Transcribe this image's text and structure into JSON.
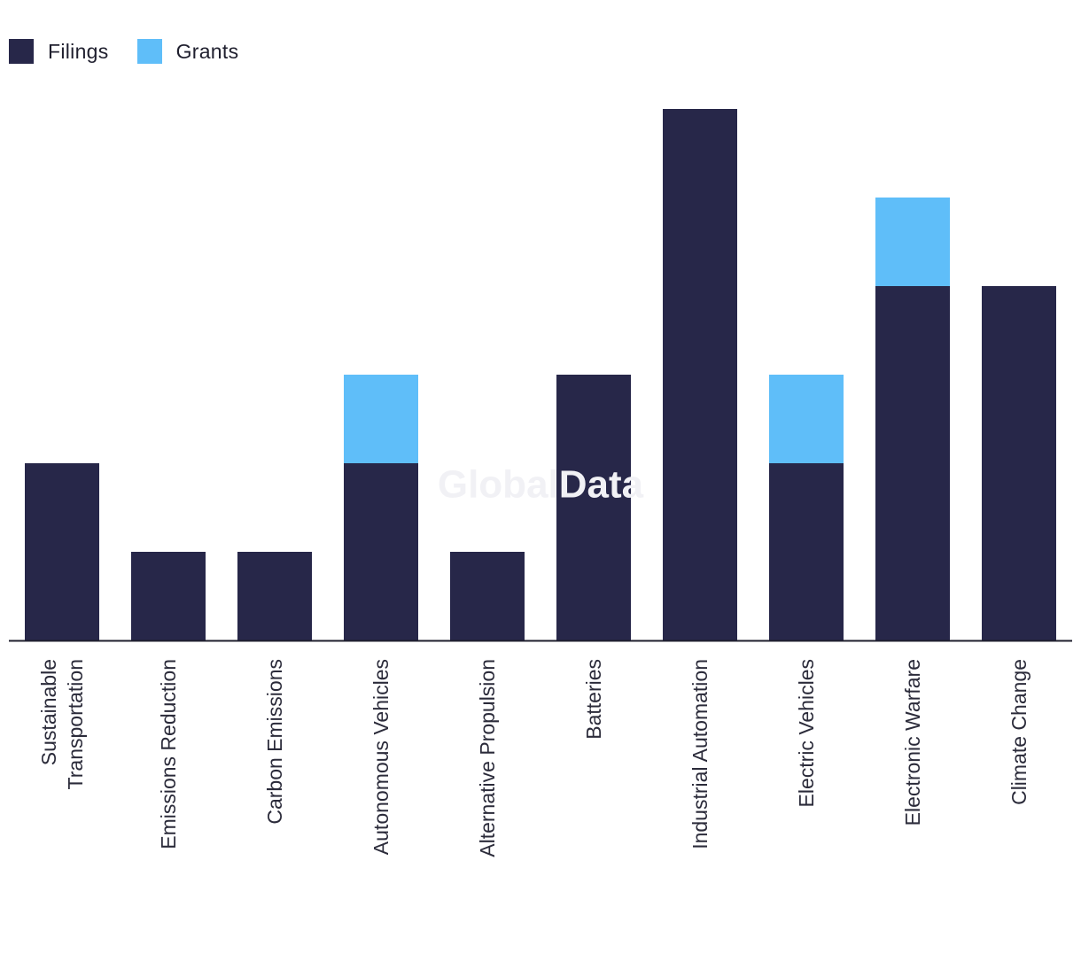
{
  "colors": {
    "filings": "#272749",
    "grants": "#5fbef9",
    "axis": "#1f1f2e",
    "label": "#2b2b3a",
    "watermark": "#f1f1f5"
  },
  "legend": {
    "items": [
      {
        "key": "filings",
        "label": "Filings"
      },
      {
        "key": "grants",
        "label": "Grants"
      }
    ],
    "placement": "top-left"
  },
  "watermark": "GlobalData",
  "chart_data": {
    "type": "bar",
    "stacked": true,
    "title": "",
    "xlabel": "",
    "ylabel": "",
    "ylim": [
      0,
      6
    ],
    "grid": false,
    "legend_placement": "top-left",
    "categories": [
      [
        "Sustainable",
        "Transportation"
      ],
      [
        "Emissions Reduction"
      ],
      [
        "Carbon Emissions"
      ],
      [
        "Autonomous Vehicles"
      ],
      [
        "Alternative Propulsion"
      ],
      [
        "Batteries"
      ],
      [
        "Industrial Automation"
      ],
      [
        "Electric Vehicles"
      ],
      [
        "Electronic Warfare"
      ],
      [
        "Climate Change"
      ]
    ],
    "series": [
      {
        "name": "Filings",
        "key": "filings",
        "values": [
          2,
          1,
          1,
          2,
          1,
          3,
          6,
          2,
          4,
          4
        ]
      },
      {
        "name": "Grants",
        "key": "grants",
        "values": [
          0,
          0,
          0,
          1,
          0,
          0,
          0,
          1,
          1,
          0
        ]
      }
    ]
  }
}
